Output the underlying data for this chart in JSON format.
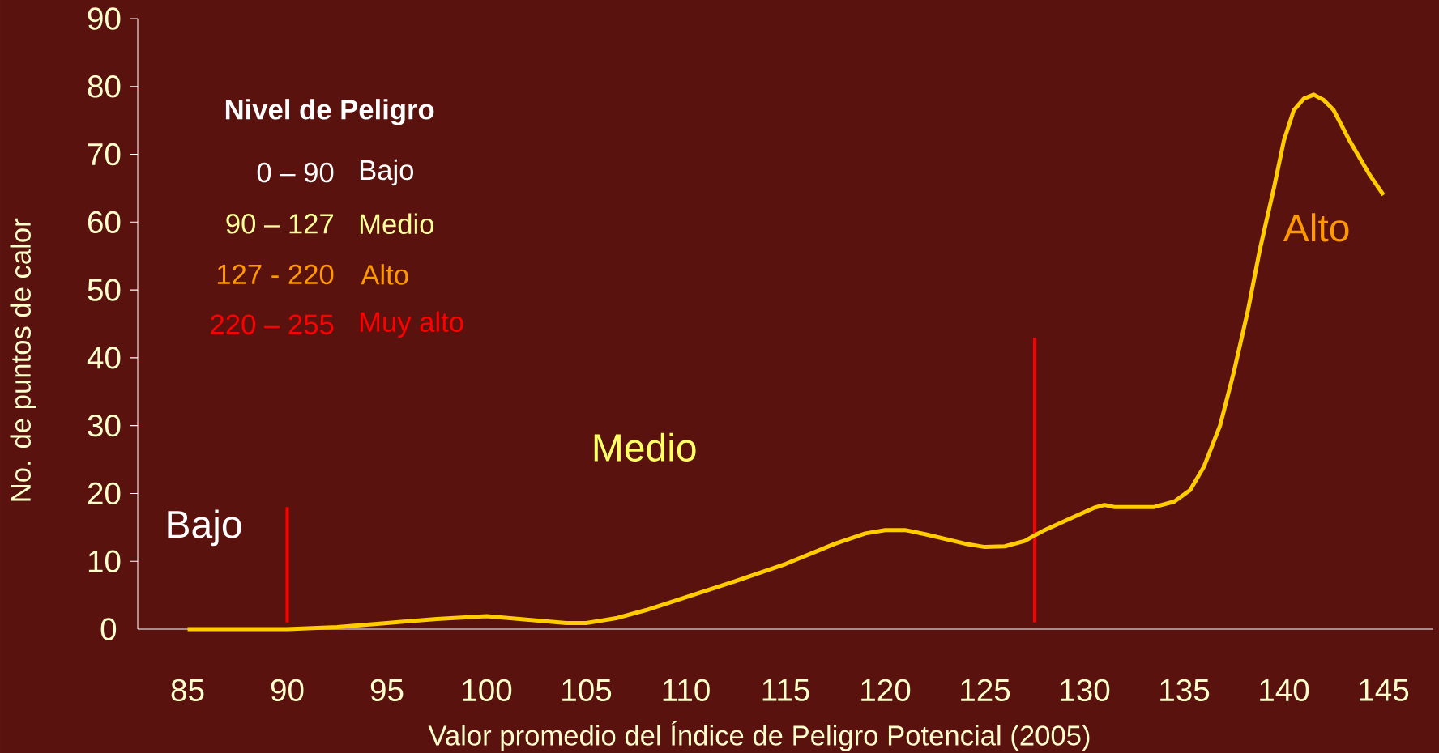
{
  "chart_data": {
    "type": "line",
    "xlabel": "Valor promedio del Índice de Peligro Potencial (2005)",
    "ylabel": "No. de puntos de calor",
    "xlim": [
      82.5,
      147.5
    ],
    "ylim": [
      0,
      90
    ],
    "xticks": [
      85,
      90,
      95,
      100,
      105,
      110,
      115,
      120,
      125,
      130,
      135,
      140,
      145
    ],
    "yticks": [
      0,
      10,
      20,
      30,
      40,
      50,
      60,
      70,
      80,
      90
    ],
    "grid": false,
    "series": [
      {
        "color": "#ffcc00",
        "x": [
          85,
          90,
          92.5,
          95,
          97.5,
          100,
          102,
          104,
          105,
          106.5,
          108,
          110,
          112.5,
          115,
          117.5,
          119,
          120,
          121,
          122,
          124,
          125,
          126,
          127,
          128,
          129.5,
          130.5,
          131,
          131.5,
          133.5,
          134.5,
          135.3,
          136,
          136.8,
          137.5,
          138.2,
          138.8,
          139.5,
          140,
          140.5,
          141,
          141.5,
          142,
          142.5,
          143.3,
          144.3,
          145
        ],
        "values": [
          0,
          0,
          0.3,
          0.9,
          1.5,
          1.9,
          1.4,
          0.9,
          0.9,
          1.6,
          2.8,
          4.7,
          7.1,
          9.6,
          12.6,
          14.1,
          14.6,
          14.6,
          14,
          12.6,
          12.1,
          12.2,
          13,
          14.6,
          16.6,
          17.9,
          18.3,
          18,
          18,
          18.8,
          20.5,
          24,
          30,
          38,
          47,
          56,
          65,
          72,
          76.5,
          78.2,
          78.8,
          78,
          76.5,
          72,
          67,
          64
        ]
      }
    ],
    "ref_lines": [
      {
        "axis": "x",
        "value": 90,
        "color": "#ff0000"
      },
      {
        "axis": "x",
        "value": 127.5,
        "color": "#ff0000"
      }
    ],
    "annotations": [
      "Nivel de Peligro",
      "0 – 90",
      "Bajo",
      "90 – 127",
      "Medio",
      "127 - 220",
      "Alto",
      "220 – 255",
      "Muy alto",
      "Bajo",
      "Medio",
      "Alto"
    ]
  }
}
